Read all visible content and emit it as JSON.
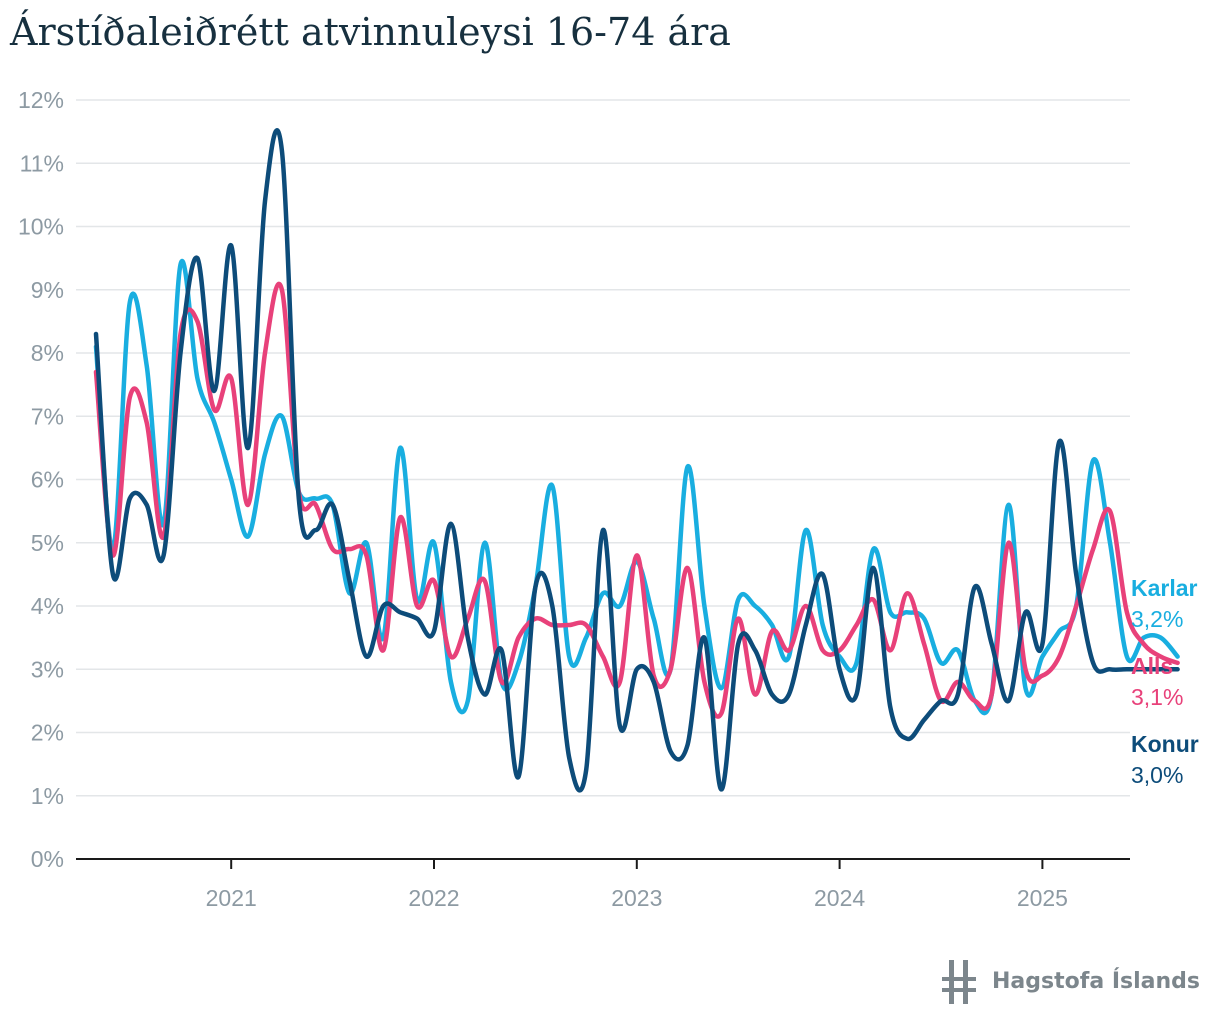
{
  "title": "Árstíðaleiðrétt atvinnuleysi 16-74 ára",
  "footer": {
    "logo_text": "Hagstofa Íslands"
  },
  "colors": {
    "karlar": "#19aee0",
    "alls": "#e8417a",
    "konur": "#0d4c7a",
    "grid": "#e3e6e8",
    "tick": "#8d9aa3",
    "title": "#17303f"
  },
  "chart_data": {
    "type": "line",
    "title": "Árstíðaleiðrétt atvinnuleysi 16-74 ára",
    "xlabel": "",
    "ylabel": "",
    "ylim": [
      0,
      12
    ],
    "y_ticks": [
      "0%",
      "1%",
      "2%",
      "3%",
      "4%",
      "5%",
      "6%",
      "7%",
      "8%",
      "9%",
      "10%",
      "11%",
      "12%"
    ],
    "x_ticks": [
      "2021",
      "2022",
      "2023",
      "2024",
      "2025"
    ],
    "x_unit": "month",
    "x_start": "2020-05",
    "grid": true,
    "series": [
      {
        "name": "Karlar",
        "end_label": "3,2%",
        "color": "#19aee0",
        "values": [
          8.1,
          4.9,
          8.8,
          7.8,
          5.3,
          9.4,
          7.6,
          6.9,
          6.0,
          5.1,
          6.4,
          7.0,
          5.8,
          5.7,
          5.6,
          4.2,
          5.0,
          3.5,
          6.5,
          4.1,
          5.0,
          2.8,
          2.5,
          5.0,
          2.8,
          3.1,
          4.3,
          5.9,
          3.2,
          3.5,
          4.2,
          4.0,
          4.7,
          3.8,
          3.0,
          6.2,
          4.0,
          2.7,
          4.1,
          4.0,
          3.7,
          3.2,
          5.2,
          3.7,
          3.2,
          3.1,
          4.9,
          3.9,
          3.9,
          3.8,
          3.1,
          3.3,
          2.5,
          2.6,
          5.6,
          2.7,
          3.2,
          3.6,
          4.0,
          6.3,
          5.0,
          3.2,
          3.5,
          3.5,
          3.2
        ]
      },
      {
        "name": "Alls",
        "end_label": "3,1%",
        "color": "#e8417a",
        "values": [
          7.7,
          4.8,
          7.3,
          6.9,
          5.1,
          8.3,
          8.5,
          7.1,
          7.6,
          5.6,
          8.0,
          9.0,
          5.8,
          5.6,
          4.9,
          4.9,
          4.8,
          3.3,
          5.4,
          4.0,
          4.4,
          3.2,
          3.8,
          4.4,
          2.8,
          3.5,
          3.8,
          3.7,
          3.7,
          3.7,
          3.2,
          2.8,
          4.8,
          2.9,
          3.0,
          4.6,
          2.8,
          2.3,
          3.8,
          2.6,
          3.6,
          3.3,
          4.0,
          3.3,
          3.3,
          3.7,
          4.1,
          3.3,
          4.2,
          3.4,
          2.5,
          2.8,
          2.5,
          2.6,
          5.0,
          3.0,
          2.9,
          3.2,
          4.0,
          4.9,
          5.5,
          3.9,
          3.4,
          3.2,
          3.1
        ]
      },
      {
        "name": "Konur",
        "end_label": "3,0%",
        "color": "#0d4c7a",
        "values": [
          8.3,
          4.5,
          5.7,
          5.6,
          4.8,
          8.0,
          9.5,
          7.4,
          9.7,
          6.5,
          10.4,
          11.2,
          5.7,
          5.2,
          5.6,
          4.4,
          3.2,
          4.0,
          3.9,
          3.8,
          3.6,
          5.3,
          3.5,
          2.6,
          3.3,
          1.3,
          4.3,
          4.0,
          1.6,
          1.4,
          5.2,
          2.1,
          3.0,
          2.8,
          1.7,
          1.8,
          3.5,
          1.1,
          3.4,
          3.3,
          2.6,
          2.6,
          3.7,
          4.5,
          3.0,
          2.6,
          4.6,
          2.4,
          1.9,
          2.2,
          2.5,
          2.6,
          4.3,
          3.4,
          2.5,
          3.9,
          3.4,
          6.6,
          4.5,
          3.1,
          3.0,
          3.0,
          3.0,
          3.0,
          3.0
        ]
      }
    ]
  }
}
